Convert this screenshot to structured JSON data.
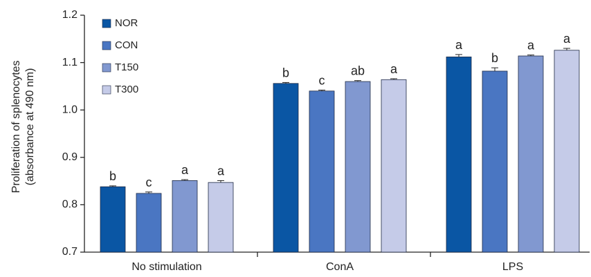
{
  "chart_data": {
    "type": "bar",
    "title": "",
    "ylabel_line1": "Proliferation of splenocytes",
    "ylabel_line2": "(absorbance at 490 nm)",
    "ylim": [
      0.7,
      1.2
    ],
    "yticks": [
      "0.7",
      "0.8",
      "0.9",
      "1.0",
      "1.1",
      "1.2"
    ],
    "ytick_values": [
      0.7,
      0.8,
      0.9,
      1.0,
      1.1,
      1.2
    ],
    "categories": [
      "No stimulation",
      "ConA",
      "LPS"
    ],
    "legend_position": "top-left",
    "grid": false,
    "series": [
      {
        "name": "NOR",
        "color": "#0a56a4",
        "values": [
          0.838,
          1.056,
          1.112
        ],
        "errors": [
          0.002,
          0.002,
          0.005
        ],
        "letters": [
          "b",
          "b",
          "a"
        ]
      },
      {
        "name": "CON",
        "color": "#4a76c2",
        "values": [
          0.824,
          1.04,
          1.082
        ],
        "errors": [
          0.003,
          0.002,
          0.007
        ],
        "letters": [
          "c",
          "c",
          "b"
        ]
      },
      {
        "name": "T150",
        "color": "#8198d0",
        "values": [
          0.851,
          1.06,
          1.114
        ],
        "errors": [
          0.002,
          0.002,
          0.002
        ],
        "letters": [
          "a",
          "ab",
          "a"
        ]
      },
      {
        "name": "T300",
        "color": "#c5cbe8",
        "values": [
          0.847,
          1.064,
          1.126
        ],
        "errors": [
          0.004,
          0.002,
          0.004
        ],
        "letters": [
          "a",
          "a",
          "a"
        ]
      }
    ]
  }
}
